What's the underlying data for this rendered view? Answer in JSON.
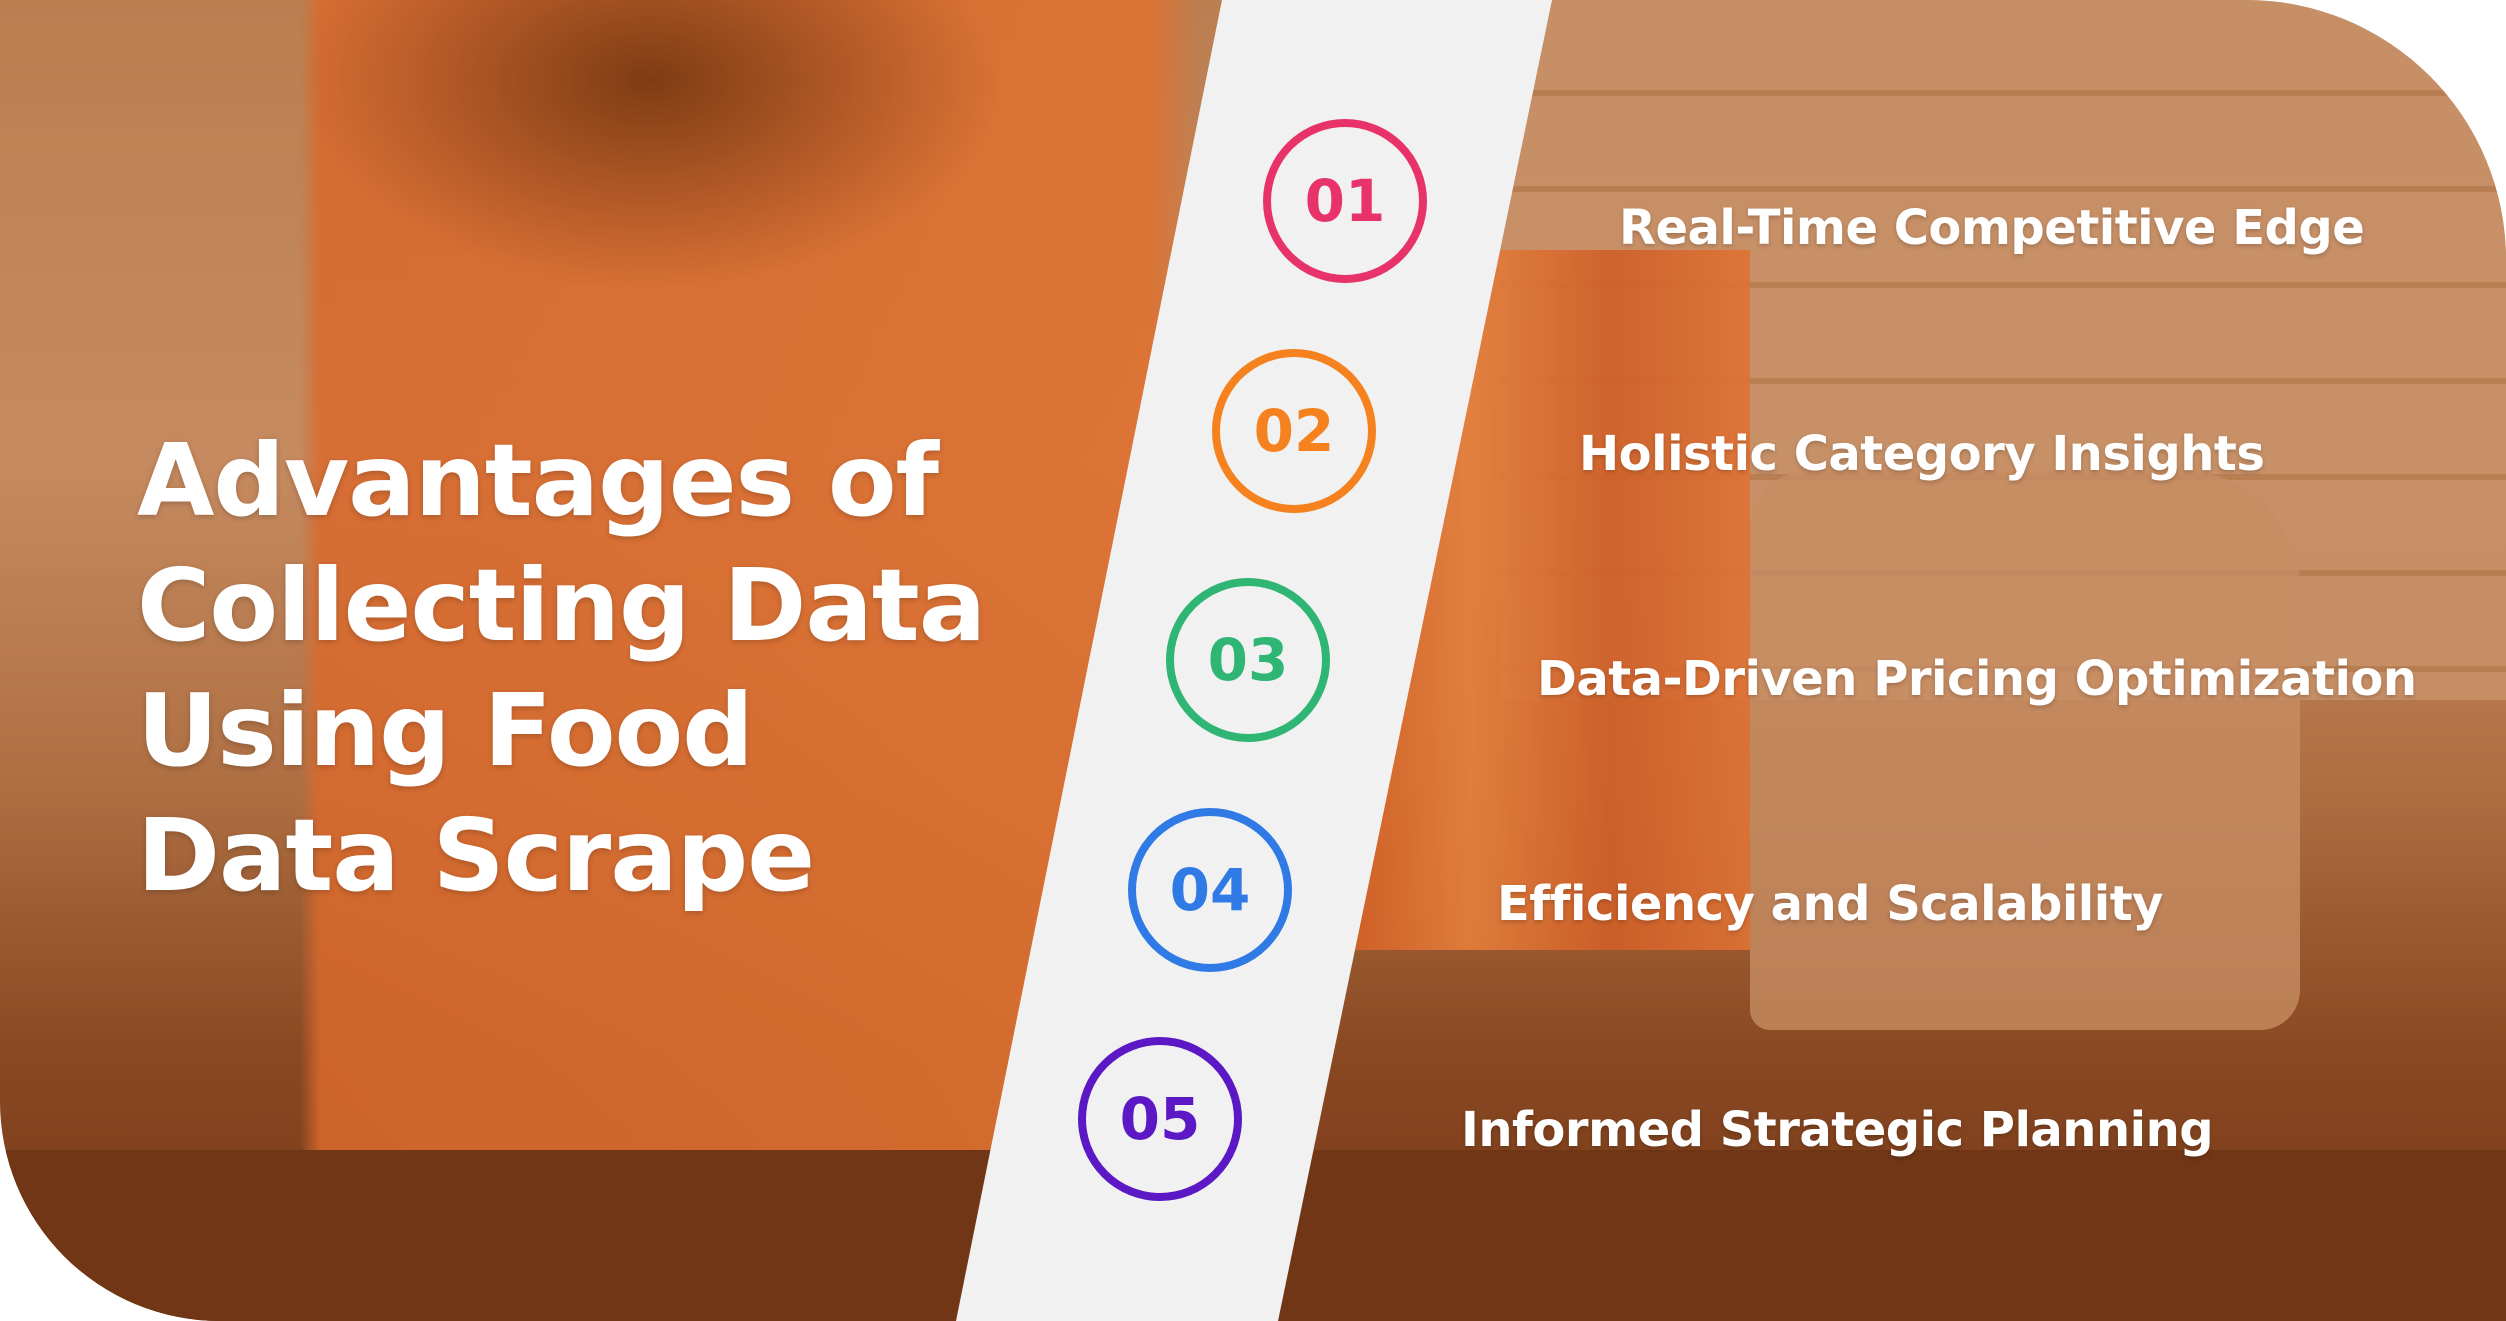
{
  "title": {
    "lines": [
      "Advantages of",
      "Collecting Data",
      "Using Food",
      "Data Scrape"
    ]
  },
  "items": [
    {
      "number": "01",
      "label": "Real-Time Competitive Edge",
      "color": "#e8336a"
    },
    {
      "number": "02",
      "label": "Holistic Category Insights",
      "color": "#f5821f"
    },
    {
      "number": "03",
      "label": "Data-Driven Pricing Optimization",
      "color": "#2fb574"
    },
    {
      "number": "04",
      "label": "Efficiency and Scalability",
      "color": "#2f7ae5"
    },
    {
      "number": "05",
      "label": "Informed Strategic Planning",
      "color": "#5b18c4"
    }
  ],
  "colors": {
    "stripe": "#f1f1f1",
    "overlay": "#c0662a"
  }
}
